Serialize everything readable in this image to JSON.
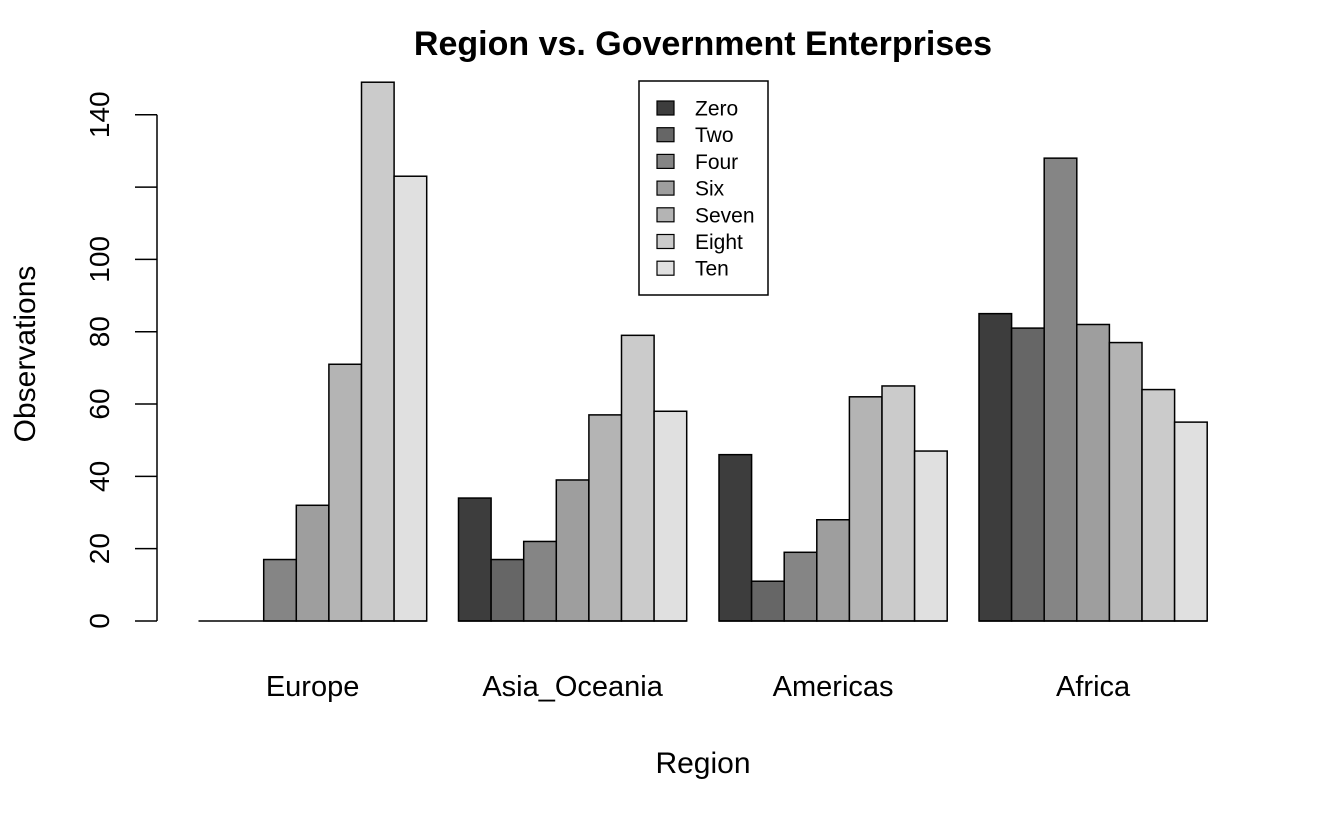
{
  "chart_data": {
    "type": "bar",
    "title": "Region vs. Government Enterprises",
    "xlabel": "Region",
    "ylabel": "Observations",
    "ylim": [
      0,
      150
    ],
    "yticks": [
      0,
      20,
      40,
      60,
      80,
      100,
      120,
      140
    ],
    "ytick_labels": [
      "0",
      "20",
      "40",
      "60",
      "80",
      "100",
      "",
      "140"
    ],
    "categories": [
      "Europe",
      "Asia_Oceania",
      "Americas",
      "Africa"
    ],
    "legend_position": "top-center",
    "grid": false,
    "series": [
      {
        "name": "Zero",
        "color": "#3d3d3d",
        "values": [
          0,
          34,
          46,
          85
        ]
      },
      {
        "name": "Two",
        "color": "#666666",
        "values": [
          0,
          17,
          11,
          81
        ]
      },
      {
        "name": "Four",
        "color": "#858585",
        "values": [
          17,
          22,
          19,
          128
        ]
      },
      {
        "name": "Six",
        "color": "#9e9e9e",
        "values": [
          32,
          39,
          28,
          82
        ]
      },
      {
        "name": "Seven",
        "color": "#b4b4b4",
        "values": [
          71,
          57,
          62,
          77
        ]
      },
      {
        "name": "Eight",
        "color": "#cbcbcb",
        "values": [
          149,
          79,
          65,
          64
        ]
      },
      {
        "name": "Ten",
        "color": "#e0e0e0",
        "values": [
          123,
          58,
          47,
          55
        ]
      }
    ]
  }
}
